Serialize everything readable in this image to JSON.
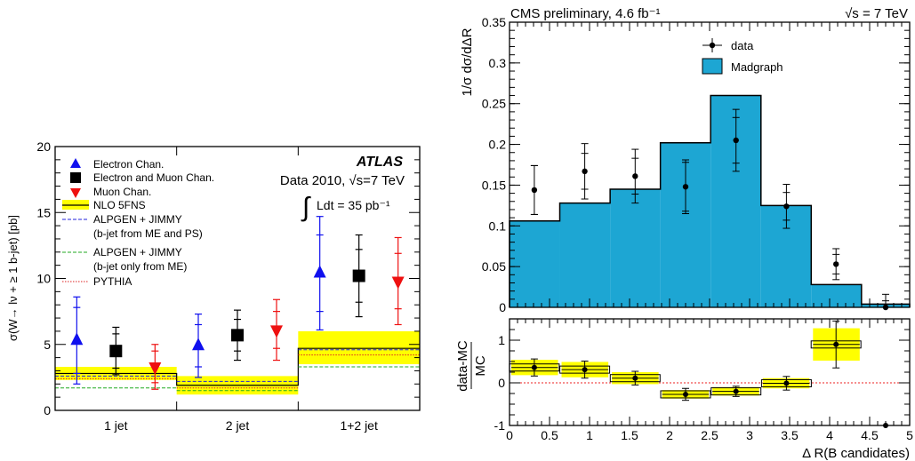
{
  "chart_data": [
    {
      "type": "bar",
      "title": "ATLAS",
      "subtitle": "Data 2010, √s=7 TeV",
      "lumi_label": "Ldt = 35 pb⁻¹",
      "lumi_integral": "∫",
      "ylabel": "σ(W→ lν + ≥ 1 b-jet) [pb]",
      "xlabel": "",
      "categories": [
        "1 jet",
        "2 jet",
        "1+2 jet"
      ],
      "ylim": [
        0,
        20
      ],
      "yticks": [
        "0",
        "5",
        "10",
        "15",
        "20"
      ],
      "legend_position": "top-left",
      "legend": [
        {
          "name": "Electron Chan.",
          "marker": "triangle-up",
          "color": "#1010ee"
        },
        {
          "name": "Electron and Muon Chan.",
          "marker": "square",
          "color": "#000000"
        },
        {
          "name": "Muon Chan.",
          "marker": "triangle-down",
          "color": "#ee1010"
        },
        {
          "name": "NLO 5FNS",
          "marker": "band",
          "color": "#ffff00"
        },
        {
          "name": "ALPGEN + JIMMY",
          "name2": "(b-jet from ME and PS)",
          "marker": "dashed",
          "color": "#2222dd"
        },
        {
          "name": "ALPGEN + JIMMY",
          "name2": "(b-jet only from ME)",
          "marker": "dashed",
          "color": "#22aa22"
        },
        {
          "name": "PYTHIA",
          "marker": "dotted",
          "color": "#dd2222"
        }
      ],
      "series": [
        {
          "name": "Electron Chan.",
          "color": "#1010ee",
          "values": [
            5.3,
            4.9,
            10.4
          ],
          "stat": [
            2.5,
            1.6,
            2.9
          ],
          "total": [
            3.3,
            2.4,
            4.3
          ]
        },
        {
          "name": "Electron and Muon Chan.",
          "color": "#000000",
          "values": [
            4.5,
            5.7,
            10.2
          ],
          "stat": [
            1.3,
            1.2,
            2.0
          ],
          "total": [
            1.8,
            1.9,
            3.1
          ]
        },
        {
          "name": "Muon Chan.",
          "color": "#ee1010",
          "values": [
            3.3,
            6.1,
            9.8
          ],
          "stat": [
            1.2,
            1.4,
            2.1
          ],
          "total": [
            1.7,
            2.3,
            3.3
          ]
        },
        {
          "name": "NLO 5FNS",
          "color": "#ffff00",
          "values": [
            2.8,
            1.9,
            4.7
          ],
          "band_low": [
            2.3,
            1.2,
            3.5
          ],
          "band_high": [
            3.3,
            2.6,
            6.0
          ]
        },
        {
          "name": "ALPGEN + JIMMY (b-jet from ME and PS)",
          "color": "#2222dd",
          "values": [
            2.6,
            2.2,
            4.6
          ]
        },
        {
          "name": "ALPGEN + JIMMY (b-jet only from ME)",
          "color": "#22aa22",
          "values": [
            1.7,
            1.5,
            3.3
          ]
        },
        {
          "name": "PYTHIA",
          "color": "#dd2222",
          "values": [
            2.4,
            1.7,
            4.2
          ]
        }
      ]
    },
    {
      "type": "bar",
      "title": "CMS preliminary, 4.6 fb⁻¹",
      "energy_label": "√s = 7 TeV",
      "ylabel": "1/σ dσ/dΔR",
      "xlabel": "",
      "ylim": [
        0,
        0.35
      ],
      "yticks": [
        "0",
        "0.05",
        "0.1",
        "0.15",
        "0.2",
        "0.25",
        "0.3",
        "0.35"
      ],
      "bin_edges": [
        0,
        0.628,
        1.257,
        1.885,
        2.513,
        3.142,
        3.77,
        4.398,
        5.0
      ],
      "legend_position": "top-right",
      "legend": [
        {
          "name": "data",
          "marker": "dot",
          "color": "#000000"
        },
        {
          "name": "Madgraph",
          "marker": "box",
          "color": "#1da6d3"
        }
      ],
      "series": [
        {
          "name": "Madgraph",
          "color": "#1da6d3",
          "values": [
            0.106,
            0.128,
            0.145,
            0.202,
            0.26,
            0.125,
            0.028,
            0.004
          ]
        },
        {
          "name": "data",
          "color": "#000000",
          "x": [
            0.31,
            0.94,
            1.57,
            2.2,
            2.83,
            3.46,
            4.08,
            4.7
          ],
          "values": [
            0.144,
            0.167,
            0.161,
            0.148,
            0.205,
            0.124,
            0.053,
            0.0
          ],
          "stat": [
            0.03,
            0.022,
            0.022,
            0.03,
            0.028,
            0.017,
            0.012,
            0.008
          ],
          "total": [
            0.03,
            0.034,
            0.033,
            0.033,
            0.038,
            0.027,
            0.019,
            0.016
          ]
        }
      ]
    },
    {
      "type": "scatter",
      "ylabel": "data-MC / MC",
      "ylabel_num": "data-MC",
      "ylabel_den": "MC",
      "xlabel": "Δ R(B candidates)",
      "xlim": [
        0,
        5
      ],
      "ylim": [
        -1,
        1.5
      ],
      "xticks": [
        "0",
        "0.5",
        "1",
        "1.5",
        "2",
        "2.5",
        "3",
        "3.5",
        "4",
        "4.5",
        "5"
      ],
      "yticks": [
        "-1",
        "0",
        "1"
      ],
      "reference_line": 0,
      "series": [
        {
          "name": "data-MC",
          "color": "#000000",
          "band_color": "#ffff00",
          "x": [
            0.31,
            0.94,
            1.57,
            2.2,
            2.83,
            3.46,
            4.08,
            4.7
          ],
          "values": [
            0.36,
            0.31,
            0.11,
            -0.27,
            -0.2,
            -0.01,
            0.9,
            -1.0
          ],
          "syst": [
            0.18,
            0.18,
            0.14,
            0.1,
            0.1,
            0.12,
            0.38,
            0.0
          ],
          "err": [
            0.2,
            0.2,
            0.16,
            0.14,
            0.12,
            0.16,
            0.55,
            0.0
          ]
        }
      ]
    }
  ]
}
